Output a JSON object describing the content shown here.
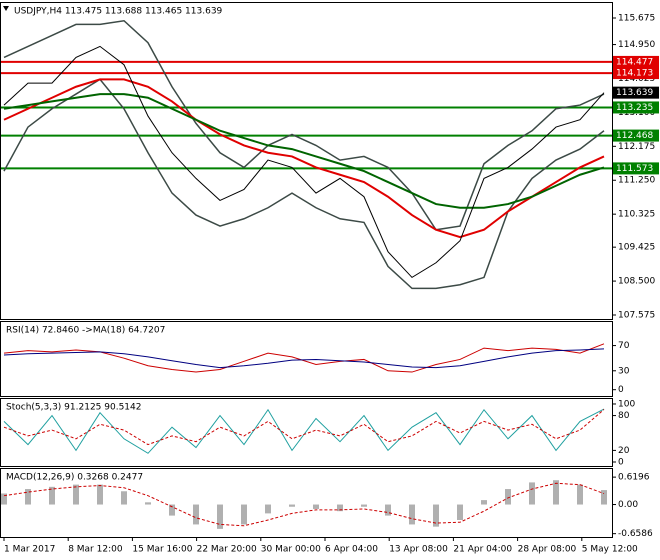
{
  "chart_data": [
    {
      "type": "line",
      "title": "USDJPY,H4  113.475 113.688 113.465 113.639",
      "ylim": [
        107.466,
        116.111
      ],
      "yticks": [
        115.675,
        {
          "value": 114.95,
          "label": "114.950"
        },
        114.025,
        {
          "value": 113.1,
          "label": "113.100"
        },
        112.175,
        {
          "value": 111.25,
          "label": "111.250"
        },
        110.325,
        109.425,
        {
          "value": 108.5,
          "label": "108.500"
        },
        107.575
      ],
      "levels": [
        {
          "value": 114.477,
          "color": "#e00000"
        },
        {
          "value": 114.173,
          "color": "#e00000"
        },
        {
          "value": 113.235,
          "color": "#008000"
        },
        {
          "value": 112.468,
          "color": "#008000"
        },
        {
          "value": 111.573,
          "color": "#008000"
        }
      ],
      "show_last_price": true,
      "series": [
        {
          "color": "#3c4a46",
          "width": 1.5,
          "values": [
            114.6,
            114.9,
            115.2,
            115.5,
            115.5,
            115.6,
            115.0,
            113.8,
            112.8,
            112.0,
            111.6,
            112.2,
            112.5,
            112.2,
            111.8,
            111.9,
            111.6,
            110.9,
            109.9,
            110.0,
            111.7,
            112.2,
            112.6,
            113.2,
            113.3,
            113.6
          ]
        },
        {
          "color": "#3c4a46",
          "width": 1.5,
          "values": [
            111.5,
            112.7,
            113.2,
            113.6,
            114.0,
            113.2,
            112.0,
            110.9,
            110.3,
            110.0,
            110.2,
            110.5,
            110.9,
            110.5,
            110.2,
            110.1,
            108.9,
            108.3,
            108.3,
            108.4,
            108.6,
            110.4,
            111.3,
            111.8,
            112.1,
            112.6
          ]
        },
        {
          "color": "#e00000",
          "width": 2,
          "values": [
            112.9,
            113.2,
            113.5,
            113.8,
            114.0,
            114.0,
            113.8,
            113.4,
            112.9,
            112.5,
            112.2,
            112.0,
            111.9,
            111.6,
            111.4,
            111.2,
            110.8,
            110.3,
            109.9,
            109.7,
            109.9,
            110.4,
            110.8,
            111.2,
            111.6,
            111.9
          ]
        },
        {
          "color": "#006400",
          "width": 2,
          "values": [
            113.2,
            113.3,
            113.4,
            113.5,
            113.6,
            113.6,
            113.5,
            113.2,
            112.9,
            112.6,
            112.4,
            112.2,
            112.1,
            111.9,
            111.7,
            111.5,
            111.2,
            110.9,
            110.6,
            110.5,
            110.5,
            110.6,
            110.8,
            111.1,
            111.4,
            111.6
          ]
        },
        {
          "color": "#000000",
          "width": 1,
          "values": [
            113.3,
            113.9,
            113.9,
            114.6,
            114.9,
            114.4,
            113.0,
            112.0,
            111.3,
            110.7,
            111.0,
            111.8,
            111.6,
            110.9,
            111.3,
            110.8,
            109.3,
            108.6,
            109.0,
            109.6,
            111.3,
            111.6,
            112.1,
            112.7,
            112.9,
            113.639
          ]
        }
      ]
    },
    {
      "type": "line",
      "title": "RSI(14) 72.8460  ->MA(18) 64.7207",
      "ylim": [
        -10,
        109
      ],
      "yticks": [
        70,
        30,
        0
      ],
      "series": [
        {
          "color": "#cc0000",
          "width": 1,
          "values": [
            58,
            62,
            60,
            63,
            60,
            50,
            38,
            32,
            28,
            32,
            45,
            58,
            52,
            40,
            45,
            48,
            30,
            28,
            40,
            48,
            66,
            62,
            66,
            64,
            58,
            72.846
          ]
        },
        {
          "color": "#000080",
          "width": 1,
          "values": [
            55,
            57,
            58,
            59,
            60,
            57,
            52,
            46,
            40,
            35,
            38,
            42,
            47,
            48,
            46,
            44,
            40,
            36,
            35,
            38,
            45,
            52,
            58,
            62,
            63,
            64.7207
          ]
        }
      ]
    },
    {
      "type": "line",
      "title": "Stoch(5,3,3) 91.2125 90.5142",
      "ylim": [
        -6.9,
        110.3
      ],
      "yticks": [
        100,
        80,
        20,
        0
      ],
      "series": [
        {
          "color": "#20a0a0",
          "width": 1,
          "values": [
            70,
            30,
            80,
            20,
            85,
            40,
            15,
            60,
            25,
            80,
            30,
            90,
            20,
            75,
            35,
            80,
            20,
            60,
            85,
            30,
            90,
            40,
            80,
            20,
            70,
            91.2125
          ]
        },
        {
          "color": "#cc0000",
          "width": 1,
          "dashed": true,
          "values": [
            60,
            45,
            55,
            40,
            65,
            55,
            30,
            45,
            35,
            60,
            45,
            70,
            40,
            55,
            45,
            65,
            35,
            45,
            70,
            50,
            70,
            55,
            65,
            40,
            55,
            90.5142
          ]
        }
      ]
    },
    {
      "type": "line",
      "title": "MACD(12,26,9) 0.3268 0.2477",
      "ylim": [
        -0.734,
        0.826
      ],
      "yticks": [
        0.6196,
        {
          "value": 0,
          "label": "0.00"
        },
        -0.6586
      ],
      "series": [
        {
          "type": "bar",
          "color": "#b0b0b0",
          "values": [
            0.25,
            0.35,
            0.4,
            0.45,
            0.45,
            0.3,
            0.05,
            -0.25,
            -0.45,
            -0.55,
            -0.45,
            -0.2,
            -0.05,
            -0.1,
            -0.15,
            -0.05,
            -0.25,
            -0.45,
            -0.5,
            -0.35,
            0.1,
            0.35,
            0.5,
            0.55,
            0.45,
            0.3268
          ]
        },
        {
          "color": "#cc0000",
          "width": 1,
          "dashed": true,
          "values": [
            0.2,
            0.28,
            0.35,
            0.4,
            0.43,
            0.38,
            0.2,
            -0.05,
            -0.3,
            -0.45,
            -0.48,
            -0.35,
            -0.2,
            -0.12,
            -0.12,
            -0.1,
            -0.18,
            -0.32,
            -0.42,
            -0.4,
            -0.15,
            0.15,
            0.35,
            0.48,
            0.45,
            0.2477
          ]
        }
      ],
      "xtick_labels": [
        "1 Mar 2017",
        "8 Mar 12:00",
        "15 Mar 16:00",
        "22 Mar 20:00",
        "30 Mar 00:00",
        "6 Apr 04:00",
        "13 Apr 08:00",
        "21 Apr 04:00",
        "28 Apr 08:00",
        "5 May 12:00"
      ]
    }
  ]
}
